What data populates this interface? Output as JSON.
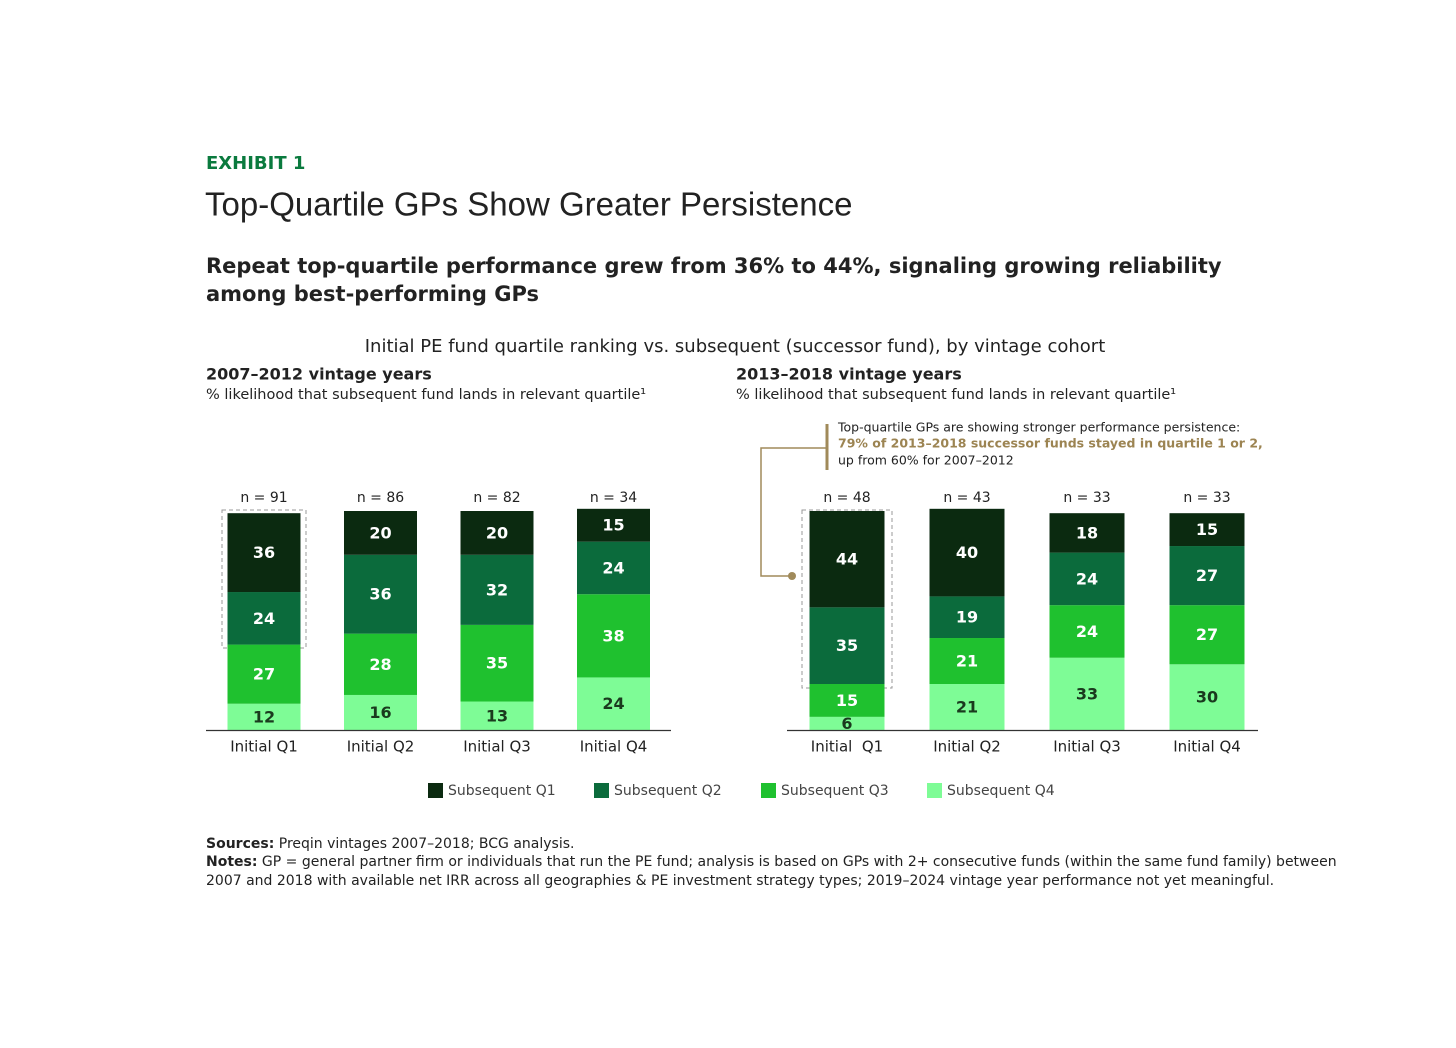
{
  "exhibit": "EXHIBIT 1",
  "title": "Top-Quartile GPs Show Greater Persistence",
  "subtitle": [
    "Repeat top-quartile performance grew from 36% to 44%, signaling growing reliability",
    "among best-performing GPs"
  ],
  "description": "Initial PE fund quartile ranking vs. subsequent (successor fund), by vintage cohort",
  "chart_data": [
    {
      "type": "bar",
      "stacked": true,
      "title": "2007–2012 vintage years",
      "subtitle": "% likelihood that subsequent fund lands in relevant quartile¹",
      "categories": [
        "Initial Q1",
        "Initial Q2",
        "Initial Q3",
        "Initial Q4"
      ],
      "category_annotations": [
        "n = 91",
        "n = 86",
        "n = 82",
        "n = 34"
      ],
      "ylim": [
        0,
        100
      ],
      "series": [
        {
          "name": "Subsequent Q1",
          "color": "#0b2a10",
          "values": [
            36,
            20,
            20,
            15
          ]
        },
        {
          "name": "Subsequent Q2",
          "color": "#0b6b3c",
          "values": [
            24,
            36,
            32,
            24
          ]
        },
        {
          "name": "Subsequent Q3",
          "color": "#1fc12f",
          "values": [
            27,
            28,
            35,
            38
          ]
        },
        {
          "name": "Subsequent Q4",
          "color": "#7efc96",
          "values": [
            12,
            16,
            13,
            24
          ]
        }
      ]
    },
    {
      "type": "bar",
      "stacked": true,
      "title": "2013–2018 vintage years",
      "subtitle": "% likelihood that subsequent fund lands in relevant quartile¹",
      "categories": [
        "Initial  Q1",
        "Initial Q2",
        "Initial Q3",
        "Initial Q4"
      ],
      "category_annotations": [
        "n = 48",
        "n = 43",
        "n = 33",
        "n = 33"
      ],
      "ylim": [
        0,
        100
      ],
      "annotation": [
        "Top-quartile GPs are showing stronger performance persistence:",
        "79% of 2013–2018 successor funds stayed in quartile 1 or 2,",
        "up from 60% for 2007–2012"
      ],
      "series": [
        {
          "name": "Subsequent Q1",
          "color": "#0b2a10",
          "values": [
            44,
            40,
            18,
            15
          ]
        },
        {
          "name": "Subsequent Q2",
          "color": "#0b6b3c",
          "values": [
            35,
            19,
            24,
            27
          ]
        },
        {
          "name": "Subsequent Q3",
          "color": "#1fc12f",
          "values": [
            15,
            21,
            24,
            27
          ]
        },
        {
          "name": "Subsequent Q4",
          "color": "#7efc96",
          "values": [
            6,
            21,
            33,
            30
          ]
        }
      ]
    }
  ],
  "sources": {
    "label": "Sources:",
    "text": "Preqin vintages 2007–2018; BCG analysis."
  },
  "notes": {
    "label": "Notes:",
    "lines": [
      "GP = general partner firm or individuals that run the PE fund; analysis is based on GPs with 2+ consecutive funds (within the same fund family) between",
      "2007 and 2018 with available net IRR across all geographies & PE investment strategy types; 2019–2024 vintage year performance not yet meaningful."
    ]
  }
}
